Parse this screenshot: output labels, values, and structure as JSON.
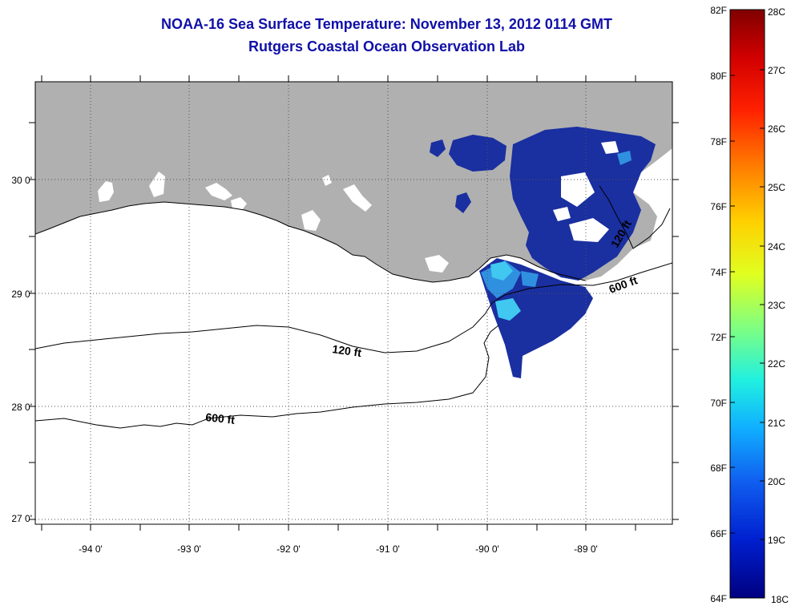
{
  "title": "NOAA-16 Sea Surface Temperature:  November 13, 2012 0114 GMT",
  "subtitle": "Rutgers Coastal Ocean Observation Lab",
  "map": {
    "lat_labels": [
      "30 0'",
      "29 0'",
      "28 0'",
      "27 0'"
    ],
    "lon_labels": [
      "-94 0'",
      "-93 0'",
      "-92 0'",
      "-91 0'",
      "-90 0'",
      "-89 0'"
    ],
    "contours": {
      "label_120_west": "120 ft",
      "label_600_west": "600 ft",
      "label_120_east": "120 ft",
      "label_600_east": "600 ft"
    },
    "colors": {
      "land": "#b0b0b0",
      "ocean": "#ffffff",
      "sst_cold": "#1030a8",
      "sst_warm": "#30b8f0"
    }
  },
  "colorbar": {
    "fahrenheit_labels": [
      "82F",
      "80F",
      "78F",
      "76F",
      "74F",
      "72F",
      "70F",
      "68F",
      "66F",
      "64F"
    ],
    "celsius_labels": [
      "28C",
      "27C",
      "26C",
      "25C",
      "24C",
      "23C",
      "22C",
      "21C",
      "20C",
      "19C",
      "18C"
    ],
    "gradient_stops": [
      "#800000",
      "#d00000",
      "#ff2000",
      "#ff8000",
      "#ffd000",
      "#e0ff20",
      "#80ff80",
      "#20f0e0",
      "#10b0ff",
      "#1060f0",
      "#0020d0",
      "#000080"
    ]
  }
}
